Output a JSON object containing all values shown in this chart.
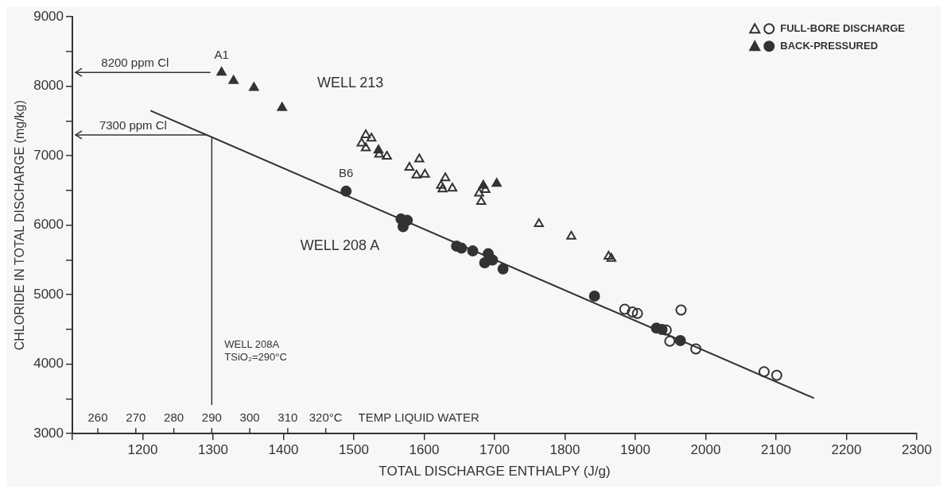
{
  "chart_data": {
    "type": "scatter",
    "xlabel": "TOTAL DISCHARGE ENTHALPY (J/g)",
    "ylabel": "CHLORIDE IN TOTAL DISCHARGE (mg/kg)",
    "xlim": [
      1100,
      2300
    ],
    "xticks": [
      {
        "value": 1100,
        "label": null
      },
      1200,
      1300,
      1400,
      1500,
      1600,
      1700,
      1800,
      1900,
      2000,
      2100,
      2200,
      2300
    ],
    "ylim": [
      3000,
      9000
    ],
    "yticks": [
      3000,
      {
        "value": 3500,
        "label": null
      },
      4000,
      {
        "value": 4500,
        "label": null
      },
      5000,
      {
        "value": 5500,
        "label": null
      },
      6000,
      {
        "value": 6500,
        "label": null
      },
      7000,
      {
        "value": 7500,
        "label": null
      },
      8000,
      {
        "value": 8500,
        "label": null
      },
      9000
    ],
    "x2label": "TEMP LIQUID WATER",
    "x2lim": [
      253.3,
      475.6
    ],
    "x2ticks": [
      260,
      270,
      280,
      290,
      300,
      310,
      {
        "value": 320,
        "label": "320°C"
      }
    ],
    "grid": false,
    "legend": "top right",
    "series": [
      {
        "name": "FULL-BORE DISCHARGE",
        "marker": "circle",
        "color": "#333333",
        "x": [
          1885,
          1896,
          1903,
          1965,
          1944,
          1949,
          1986,
          2083,
          2101
        ],
        "values": [
          4790,
          4750,
          4730,
          4780,
          4490,
          4330,
          4220,
          3890,
          3840
        ]
      },
      {
        "marker": "triangle",
        "color": "#333333",
        "x": [
          1517,
          1525,
          1511,
          1517,
          1536,
          1547,
          1593,
          1579,
          1589,
          1601,
          1630,
          1624,
          1640,
          1626,
          1678,
          1681,
          1687,
          1763,
          1809,
          1862,
          1866
        ],
        "values": [
          7300,
          7250,
          7180,
          7110,
          7020,
          6990,
          6950,
          6830,
          6720,
          6730,
          6680,
          6570,
          6530,
          6520,
          6460,
          6340,
          6510,
          6020,
          5840,
          5550,
          5520
        ]
      },
      {
        "name": "BACK-PRESSURED",
        "marker": "circle",
        "color": "#333333",
        "x": [
          1489,
          1567,
          1576,
          1570,
          1646,
          1653,
          1669,
          1691,
          1686,
          1697,
          1712,
          1842,
          1930,
          1938,
          1964
        ],
        "values": [
          6490,
          6090,
          6070,
          5980,
          5700,
          5670,
          5630,
          5590,
          5460,
          5500,
          5370,
          4980,
          4520,
          4500,
          4340
        ]
      },
      {
        "marker": "triangle",
        "color": "#333333",
        "x": [
          1312,
          1329,
          1358,
          1398,
          1535,
          1684,
          1703
        ],
        "values": [
          8200,
          8080,
          7980,
          7690,
          7080,
          6570,
          6600
        ]
      },
      {
        "type": "line",
        "marker": "none",
        "color": "#333333",
        "x": [
          1211,
          2154
        ],
        "values": [
          7650,
          3510
        ]
      }
    ],
    "annotations": [
      {
        "text": "A1",
        "x": 1312,
        "y": 8200
      },
      {
        "text": "B6",
        "x": 1489,
        "y": 6490
      },
      "WELL 213",
      "WELL 208 A"
    ],
    "ref_lines": [
      {
        "axis": "y",
        "value": 8200,
        "label": "8200 ppm Cl"
      },
      {
        "axis": "y",
        "value": 7300,
        "label": "7300 ppm Cl"
      },
      {
        "axis": "x2",
        "value": 290,
        "label": "WELL 208A\nTSiO₂=290°C"
      }
    ]
  }
}
